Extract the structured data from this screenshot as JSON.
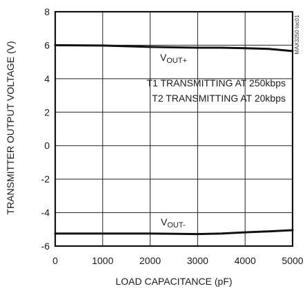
{
  "chart_data": {
    "type": "line",
    "xlabel": "LOAD CAPACITANCE (pF)",
    "ylabel": "TRANSMITTER OUTPUT VOLTAGE (V)",
    "xlim": [
      0,
      5000
    ],
    "ylim": [
      -6,
      8
    ],
    "x_ticks": [
      "0",
      "1000",
      "2000",
      "3000",
      "4000",
      "5000"
    ],
    "y_ticks": [
      "8",
      "6",
      "4",
      "2",
      "0",
      "-2",
      "-4",
      "-6"
    ],
    "grid": true,
    "series": [
      {
        "name_main": "V",
        "name_sub": "OUT+",
        "x": [
          0,
          1000,
          2000,
          3000,
          3500,
          4000,
          4500,
          5000
        ],
        "y": [
          6.0,
          5.98,
          5.9,
          5.85,
          5.85,
          5.82,
          5.78,
          5.65
        ]
      },
      {
        "name_main": "V",
        "name_sub": "OUT-",
        "x": [
          0,
          1000,
          2000,
          3000,
          3500,
          4000,
          4500,
          5000
        ],
        "y": [
          -5.25,
          -5.25,
          -5.25,
          -5.28,
          -5.25,
          -5.18,
          -5.12,
          -5.05
        ]
      }
    ],
    "annotations": [
      "T1 TRANSMITTING AT 250kbps",
      "T2 TRANSMITTING AT 20kbps"
    ],
    "figure_code": "MAX3250 toc01"
  }
}
